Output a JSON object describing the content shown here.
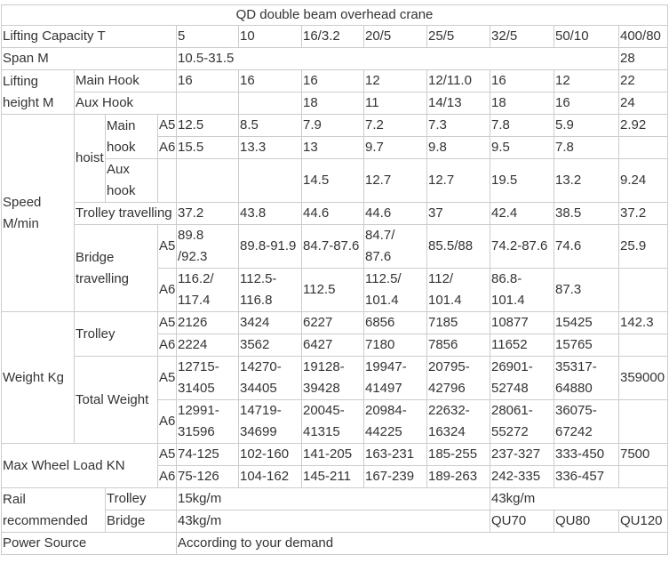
{
  "title": "QD double beam overhead crane",
  "grades": {
    "a5": "A5",
    "a6": "A6"
  },
  "capacity": {
    "label": "Lifting Capacity   T",
    "values": [
      "5",
      "10",
      "16/3.2",
      "20/5",
      "25/5",
      "32/5",
      "50/10",
      "400/80"
    ]
  },
  "span": {
    "label": "Span  M",
    "value_main": "10.5-31.5",
    "value_last": "28"
  },
  "lifting_height": {
    "label": "Lifting height M",
    "main_hook": {
      "label": "Main Hook",
      "values": [
        "16",
        "16",
        "16",
        "12",
        "12/11.0",
        "16",
        "12",
        "22"
      ]
    },
    "aux_hook": {
      "label": "Aux Hook",
      "values": [
        "",
        "",
        "18",
        "11",
        "14/13",
        "18",
        "16",
        "24"
      ]
    }
  },
  "speed": {
    "label": "Speed M/min",
    "hoist_label": "hoist",
    "main_hook_label": "Main hook",
    "main_a5": [
      "12.5",
      "8.5",
      "7.9",
      "7.2",
      "7.3",
      "7.8",
      "5.9",
      "2.92"
    ],
    "main_a6": [
      "15.5",
      "13.3",
      "13",
      "9.7",
      "9.8",
      "9.5",
      "7.8",
      ""
    ],
    "aux_hook_label": "Aux hook",
    "aux_values": [
      "",
      "",
      "14.5",
      "12.7",
      "12.7",
      "19.5",
      "13.2",
      "9.24"
    ],
    "trolley_label": "Trolley travelling",
    "trolley_values": [
      "37.2",
      "43.8",
      "44.6",
      "44.6",
      "37",
      "42.4",
      "38.5",
      "37.2"
    ],
    "bridge_label": "Bridge travelling",
    "bridge_a5": [
      "89.8\n/92.3",
      "89.8-91.9",
      "84.7-87.6",
      "84.7/\n87.6",
      "85.5/88",
      "74.2-87.6",
      "74.6",
      "25.9"
    ],
    "bridge_a6": [
      "116.2/\n117.4",
      "112.5-\n116.8",
      "112.5",
      "112.5/\n101.4",
      "112/\n101.4",
      "86.8-\n101.4",
      "87.3",
      ""
    ]
  },
  "weight": {
    "label": "Weight  Kg",
    "trolley_label": "Trolley",
    "trolley_a5": [
      "2126",
      "3424",
      "6227",
      "6856",
      "7185",
      "10877",
      "15425",
      "142.3"
    ],
    "trolley_a6": [
      "2224",
      "3562",
      "6427",
      "7180",
      "7856",
      "11652",
      "15765",
      ""
    ],
    "total_label": "Total Weight",
    "total_a5": [
      "12715-\n31405",
      "14270-\n34405",
      "19128-\n39428",
      "19947-\n41497",
      "20795-\n42796",
      "26901-\n52748",
      "35317-\n64880",
      "359000"
    ],
    "total_a6": [
      "12991-\n31596",
      "14719-\n34699",
      "20045-\n41315",
      "20984-\n44225",
      "22632-\n16324",
      "28061-\n55272",
      "36075-\n67242",
      ""
    ]
  },
  "wheel_load": {
    "label": "Max Wheel Load KN",
    "a5": [
      "74-125",
      "102-160",
      "141-205",
      "163-231",
      "185-255",
      "237-327",
      "333-450",
      "7500"
    ],
    "a6": [
      "75-126",
      "104-162",
      "145-211",
      "167-239",
      "189-263",
      "242-335",
      "336-457",
      ""
    ]
  },
  "rail": {
    "label": "Rail\nrecommended",
    "trolley_label": "Trolley",
    "trolley_values": [
      "15kg/m",
      "43kg/m"
    ],
    "bridge_label": "Bridge",
    "bridge_values": [
      "43kg/m",
      "QU70",
      "QU80",
      "QU120"
    ]
  },
  "power": {
    "label": "Power Source",
    "value": "According to your demand"
  }
}
